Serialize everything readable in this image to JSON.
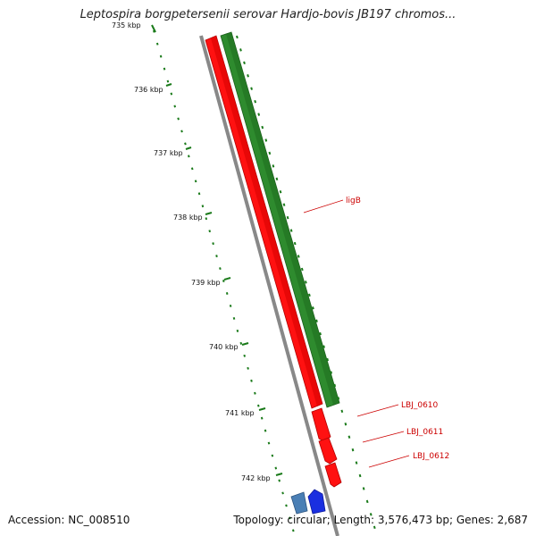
{
  "map": {
    "title": "Leptospira borgpetersenii serovar Hardjo-bovis JB197 chromos...",
    "accession": "Accession: NC_008510",
    "stats": "Topology: circular; Length: 3,576,473 bp; Genes: 2,687"
  },
  "scale": {
    "unit": "kbp",
    "tick_labels": [
      "735 kbp",
      "736 kbp",
      "737 kbp",
      "738 kbp",
      "739 kbp",
      "740 kbp",
      "741 kbp",
      "742 kbp"
    ]
  },
  "genes": [
    {
      "name": "ligB",
      "color": "#cc0000"
    },
    {
      "name": "LBJ_0610",
      "color": "#cc0000"
    },
    {
      "name": "LBJ_0611",
      "color": "#cc0000"
    },
    {
      "name": "LBJ_0612",
      "color": "#cc0000"
    }
  ],
  "colors": {
    "backbone": "#888888",
    "cds": "#ff0000",
    "gene": "#2e8b2e",
    "ruler": "#1a7a1a",
    "label": "#cc0000",
    "feature_blue_light": "#4a7fb5",
    "feature_blue_dark": "#1a2fe0"
  }
}
